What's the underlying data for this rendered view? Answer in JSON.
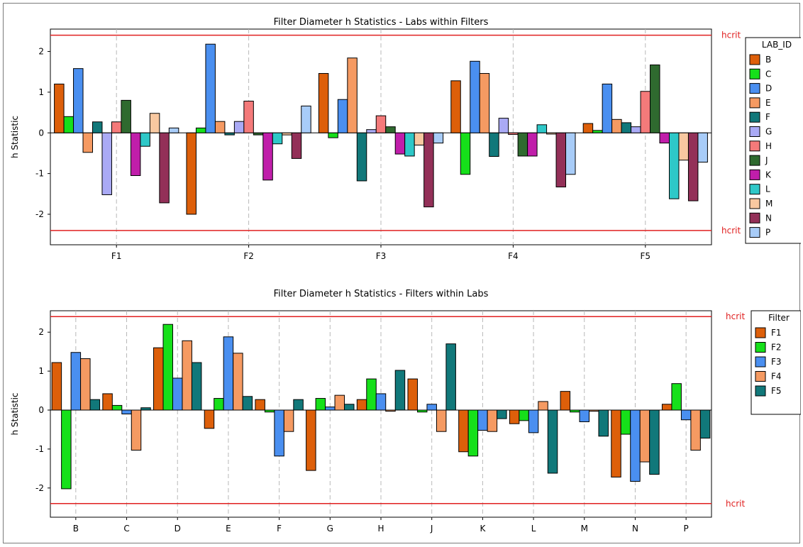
{
  "colors": {
    "hcrit": "#e02020",
    "grid": "#b8b8b8",
    "axis": "#000000",
    "labs": {
      "B": "#dd5f0a",
      "C": "#16e01a",
      "D": "#4a8ff0",
      "E": "#f59a62",
      "F": "#11787a",
      "G": "#aaaaf5",
      "H": "#f47a7a",
      "J": "#2f6a2f",
      "K": "#c01eaa",
      "L": "#2ec8c8",
      "M": "#f8c8a0",
      "N": "#933058",
      "P": "#a8ccf8"
    },
    "filters": {
      "F1": "#dd5f0a",
      "F2": "#16e01a",
      "F3": "#4a8ff0",
      "F4": "#f59a62",
      "F5": "#11787a"
    }
  },
  "chart_data": [
    {
      "type": "bar",
      "title": "Filter Diameter h Statistics - Labs within Filters",
      "ylabel": "h Statistic",
      "xlabel": "",
      "ylim": [
        -2.75,
        2.55
      ],
      "yticks": [
        -2,
        -1,
        0,
        1,
        2
      ],
      "grid": "vertical dashed",
      "legend_title": "LAB_ID",
      "legend_position": "right",
      "reference_lines": [
        {
          "label": "hcrit",
          "value": 2.4
        },
        {
          "label": "hcrit",
          "value": -2.4
        }
      ],
      "categories": [
        "F1",
        "F2",
        "F3",
        "F4",
        "F5"
      ],
      "series": [
        {
          "name": "B",
          "values": [
            1.2,
            -2.0,
            1.46,
            1.28,
            0.23
          ]
        },
        {
          "name": "C",
          "values": [
            0.4,
            0.12,
            -0.12,
            -1.02,
            0.06
          ]
        },
        {
          "name": "D",
          "values": [
            1.58,
            2.18,
            0.82,
            1.76,
            1.2
          ]
        },
        {
          "name": "E",
          "values": [
            -0.48,
            0.28,
            1.84,
            1.46,
            0.33
          ]
        },
        {
          "name": "F",
          "values": [
            0.27,
            -0.05,
            -1.18,
            -0.58,
            0.25
          ]
        },
        {
          "name": "G",
          "values": [
            -1.52,
            0.28,
            0.08,
            0.36,
            0.15
          ]
        },
        {
          "name": "H",
          "values": [
            0.27,
            0.78,
            0.42,
            -0.04,
            1.02
          ]
        },
        {
          "name": "J",
          "values": [
            0.8,
            -0.05,
            0.15,
            -0.57,
            1.67
          ]
        },
        {
          "name": "K",
          "values": [
            -1.05,
            -1.16,
            -0.52,
            -0.57,
            -0.25
          ]
        },
        {
          "name": "L",
          "values": [
            -0.33,
            -0.27,
            -0.57,
            0.2,
            -1.62
          ]
        },
        {
          "name": "M",
          "values": [
            0.48,
            -0.05,
            -0.3,
            -0.03,
            -0.67
          ]
        },
        {
          "name": "N",
          "values": [
            -1.72,
            -0.63,
            -1.82,
            -1.33,
            -1.67
          ]
        },
        {
          "name": "P",
          "values": [
            0.12,
            0.66,
            -0.25,
            -1.02,
            -0.72
          ]
        }
      ]
    },
    {
      "type": "bar",
      "title": "Filter Diameter h Statistics - Filters within Labs",
      "ylabel": "h Statistic",
      "xlabel": "",
      "ylim": [
        -2.75,
        2.55
      ],
      "yticks": [
        -2,
        -1,
        0,
        1,
        2
      ],
      "grid": "vertical dashed",
      "legend_title": "Filter",
      "legend_position": "right",
      "reference_lines": [
        {
          "label": "hcrit",
          "value": 2.4
        },
        {
          "label": "hcrit",
          "value": -2.4
        }
      ],
      "categories": [
        "B",
        "C",
        "D",
        "E",
        "F",
        "G",
        "H",
        "J",
        "K",
        "L",
        "M",
        "N",
        "P"
      ],
      "series": [
        {
          "name": "F1",
          "values": [
            1.22,
            0.42,
            1.6,
            -0.47,
            0.27,
            -1.55,
            0.27,
            0.8,
            -1.07,
            -0.35,
            0.48,
            -1.72,
            0.15
          ]
        },
        {
          "name": "F2",
          "values": [
            -2.02,
            0.12,
            2.2,
            0.3,
            -0.05,
            0.3,
            0.8,
            -0.05,
            -1.18,
            -0.27,
            -0.05,
            -0.62,
            0.68
          ]
        },
        {
          "name": "F3",
          "values": [
            1.48,
            -0.1,
            0.82,
            1.88,
            -1.18,
            0.08,
            0.42,
            0.15,
            -0.52,
            -0.58,
            -0.3,
            -1.83,
            -0.25
          ]
        },
        {
          "name": "F4",
          "values": [
            1.32,
            -1.03,
            1.78,
            1.46,
            -0.55,
            0.38,
            -0.03,
            -0.55,
            -0.55,
            0.22,
            -0.03,
            -1.33,
            -1.03
          ]
        },
        {
          "name": "F5",
          "values": [
            0.27,
            0.06,
            1.22,
            0.35,
            0.27,
            0.15,
            1.02,
            1.7,
            -0.22,
            -1.62,
            -0.67,
            -1.65,
            -0.72
          ]
        }
      ]
    }
  ]
}
